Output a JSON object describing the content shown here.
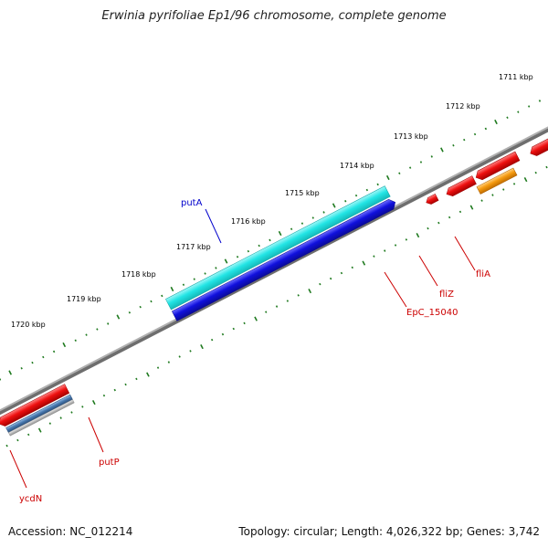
{
  "title": "Erwinia pyrifoliae Ep1/96 chromosome, complete genome",
  "footer": {
    "accession": "Accession: NC_012214",
    "summary": "Topology: circular; Length: 4,026,322 bp; Genes: 3,742"
  },
  "ticks": [
    "1711 kbp",
    "1712 kbp",
    "1713 kbp",
    "1714 kbp",
    "1715 kbp",
    "1716 kbp",
    "1717 kbp",
    "1718 kbp",
    "1719 kbp",
    "1720 kbp"
  ],
  "gene_labels": {
    "putA": "putA",
    "fliA": "fliA",
    "fliZ": "fliZ",
    "EpC_15040": "EpC_15040",
    "putP": "putP",
    "ycdN": "ycdN"
  },
  "colors": {
    "backbone": "#7a7a7a",
    "tick": "#1f7a1f",
    "putA_label": "#0000cc",
    "red_label": "#cc0000",
    "cyan": "#22e5e5",
    "blue": "#1010dd",
    "red": "#ee1010",
    "orange": "#f59a10",
    "green": "#1a8a1a",
    "steel": "#4a7ab0",
    "grey": "#c0c0c0",
    "purple": "#4a3f8a"
  }
}
